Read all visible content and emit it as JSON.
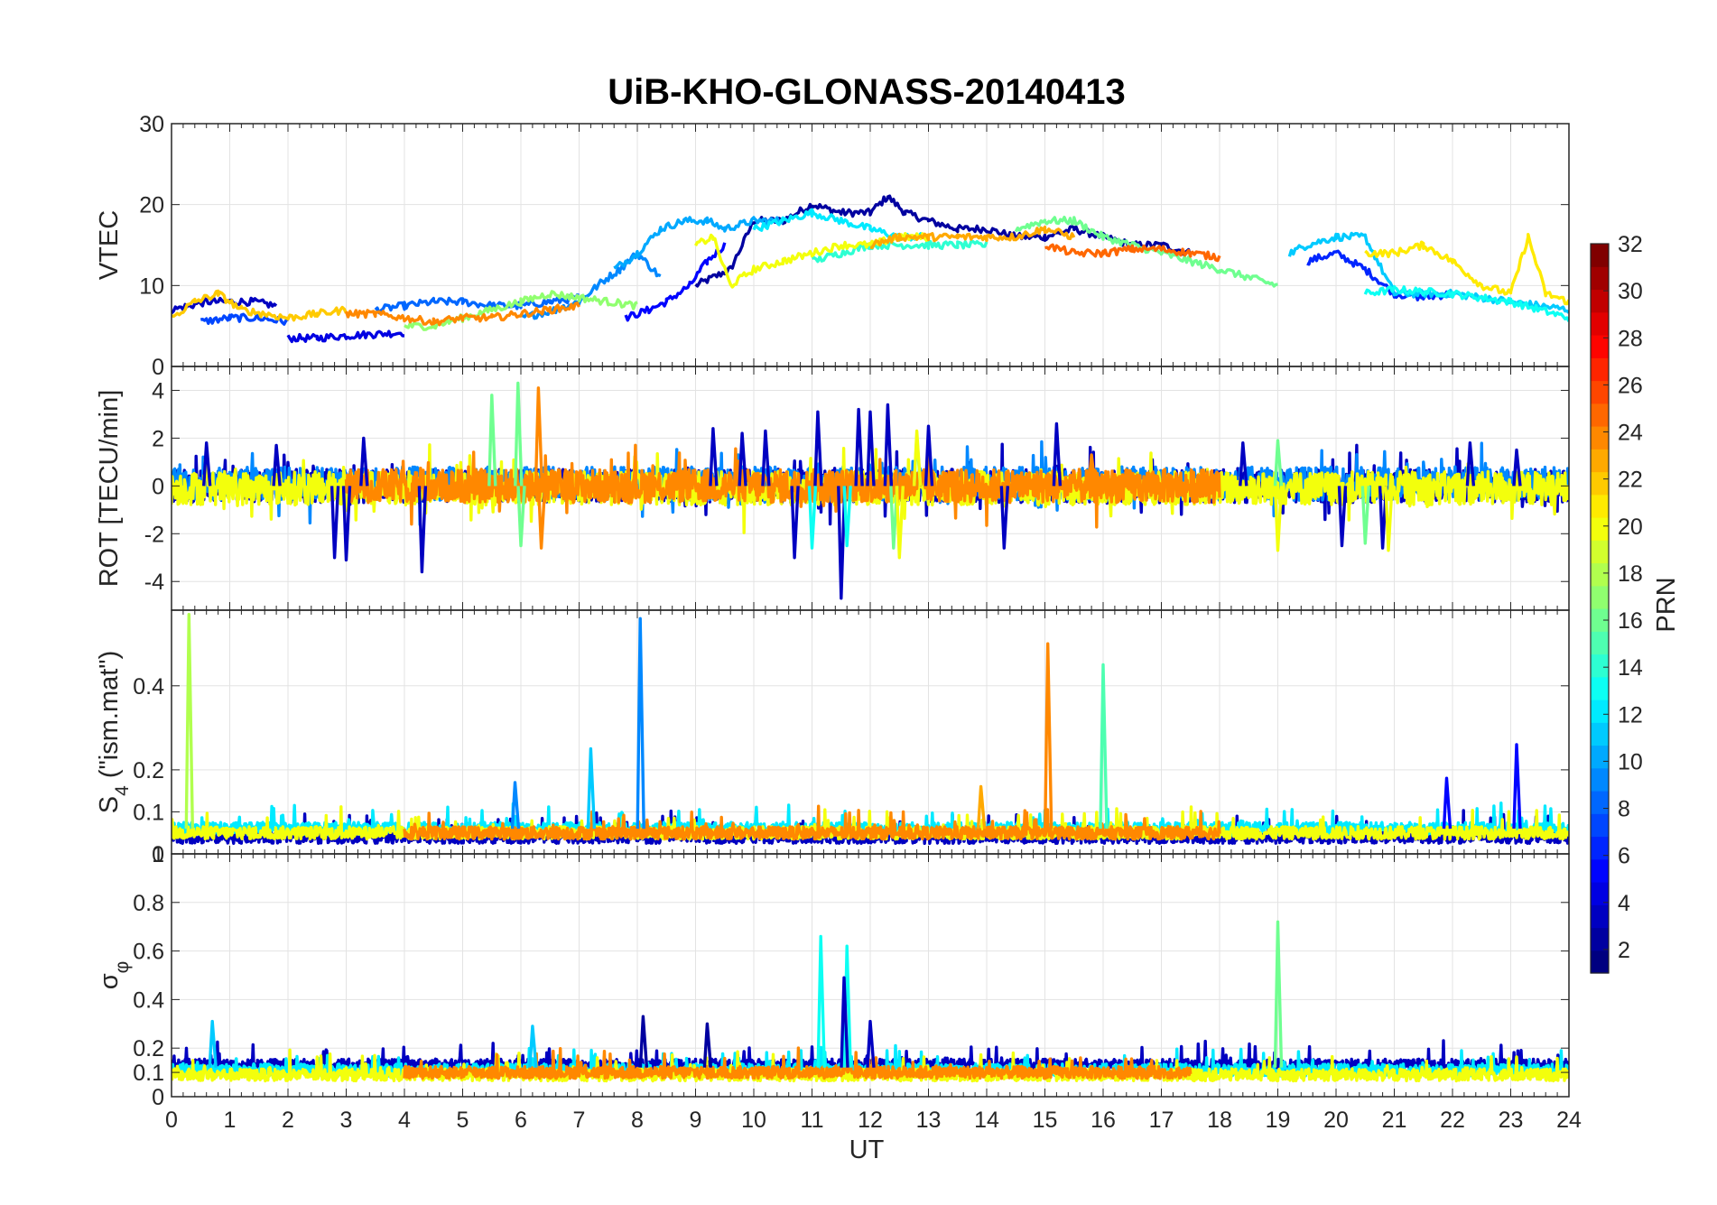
{
  "chart_data": {
    "type": "line",
    "title": "UiB-KHO-GLONASS-20140413",
    "xlabel": "UT",
    "xlim": [
      0,
      24
    ],
    "xticks": [
      "0",
      "1",
      "2",
      "3",
      "4",
      "5",
      "6",
      "7",
      "8",
      "9",
      "10",
      "11",
      "12",
      "13",
      "14",
      "15",
      "16",
      "17",
      "18",
      "19",
      "20",
      "21",
      "22",
      "23",
      "24"
    ],
    "grid": true,
    "colorbar": {
      "label": "PRN",
      "colormap": "jet",
      "range": [
        1,
        32
      ],
      "ticks": [
        "2",
        "4",
        "6",
        "8",
        "10",
        "12",
        "14",
        "16",
        "18",
        "20",
        "22",
        "24",
        "26",
        "28",
        "30",
        "32"
      ]
    },
    "panels": [
      {
        "id": "vtec",
        "ylabel": "VTEC",
        "ylim": [
          0,
          30
        ],
        "yticks": [
          "0",
          "10",
          "20",
          "30"
        ],
        "series": [
          {
            "prn": 2,
            "name": "PRN 2",
            "x": [
              9.0,
              9.6,
              10.0,
              10.5,
              11.0,
              11.5,
              12.0,
              12.3,
              12.6,
              13.0,
              13.5,
              14.0,
              14.5,
              15.0,
              15.5,
              16.0,
              16.5,
              17.0,
              17.5
            ],
            "y": [
              10,
              12,
              18,
              18,
              20,
              19,
              19,
              21,
              19,
              18,
              17,
              17,
              16,
              16,
              17,
              16,
              15,
              15,
              14
            ]
          },
          {
            "prn": 3,
            "name": "PRN 3",
            "x": [
              0.0,
              0.3,
              0.6,
              1.0,
              1.4,
              1.8
            ],
            "y": [
              7,
              7.5,
              8,
              8,
              8,
              7.5
            ]
          },
          {
            "prn": 4,
            "name": "PRN 4",
            "x": [
              2.0,
              2.5,
              3.0,
              3.5,
              4.0
            ],
            "y": [
              3.5,
              3.5,
              3.8,
              4,
              4.2
            ]
          },
          {
            "prn": 5,
            "name": "PRN 5",
            "x": [
              7.8,
              8.2,
              8.5,
              8.9,
              9.2,
              9.5
            ],
            "y": [
              6,
              7,
              8,
              10,
              13,
              15
            ]
          },
          {
            "prn": 6,
            "name": "PRN 6",
            "x": [
              19.5,
              20.0,
              20.5,
              21.0,
              21.5,
              22.0
            ],
            "y": [
              13,
              14,
              12,
              9,
              8.5,
              9
            ]
          },
          {
            "prn": 7,
            "name": "PRN 7",
            "x": [
              0.5,
              1.0,
              1.5,
              2.0
            ],
            "y": [
              5.5,
              6,
              6,
              5.5
            ]
          },
          {
            "prn": 8,
            "name": "PRN 8",
            "x": [
              3.5,
              4.0,
              4.5,
              5.0,
              5.5,
              6.0,
              6.5,
              7.0
            ],
            "y": [
              7,
              7.5,
              8,
              8,
              7.5,
              7.5,
              8,
              8.5
            ]
          },
          {
            "prn": 9,
            "name": "PRN 9",
            "x": [
              6.0,
              6.6,
              7.0,
              7.4,
              7.7,
              8.0,
              8.4
            ],
            "y": [
              6,
              7,
              8,
              10.5,
              12,
              14,
              11
            ]
          },
          {
            "prn": 10,
            "name": "PRN 10",
            "x": [
              7.6,
              8.0,
              8.4,
              8.8,
              9.2,
              9.5,
              10.0,
              10.5
            ],
            "y": [
              12,
              14,
              17,
              18,
              18,
              17,
              18,
              18
            ]
          },
          {
            "prn": 11,
            "name": "PRN 11",
            "x": [
              19.2,
              19.5,
              20.0,
              20.5,
              21.0,
              22.0,
              23.0,
              24.0
            ],
            "y": [
              14,
              15,
              16,
              16,
              9,
              9,
              8,
              7
            ]
          },
          {
            "prn": 12,
            "name": "PRN 12",
            "x": [
              10.0,
              10.5,
              11.0,
              11.5,
              12.0,
              12.5,
              13.0
            ],
            "y": [
              17,
              18,
              19,
              18,
              17,
              16,
              16
            ]
          },
          {
            "prn": 13,
            "name": "PRN 13",
            "x": [
              20.5,
              21.0,
              22.0,
              23.0,
              24.0
            ],
            "y": [
              9,
              9.5,
              9,
              8,
              6
            ]
          },
          {
            "prn": 14,
            "name": "PRN 14",
            "x": [
              11.0,
              11.5,
              12.0,
              12.5,
              13.0,
              13.5,
              14.0
            ],
            "y": [
              13,
              14,
              15,
              15,
              15,
              15,
              15
            ]
          },
          {
            "prn": 16,
            "name": "PRN 16",
            "x": [
              14.5,
              15.0,
              15.5,
              16.0,
              16.5,
              17.0,
              17.5,
              18.0,
              18.5,
              19.0
            ],
            "y": [
              17,
              18,
              18,
              16,
              15,
              14,
              13,
              12,
              11,
              10
            ]
          },
          {
            "prn": 17,
            "name": "PRN 17",
            "x": [
              4.0,
              4.5,
              5.0,
              5.5,
              6.0,
              6.5,
              7.0,
              7.5,
              8.0
            ],
            "y": [
              5,
              5,
              6,
              7,
              8,
              9,
              8.5,
              8,
              7.5
            ]
          },
          {
            "prn": 20,
            "name": "PRN 20",
            "x": [
              9.0,
              9.3,
              9.6,
              10.0,
              10.5,
              11.0,
              11.5,
              12.0,
              12.5,
              13.0
            ],
            "y": [
              15,
              16,
              10,
              12,
              13,
              14,
              15,
              15,
              16,
              16
            ]
          },
          {
            "prn": 21,
            "name": "PRN 21",
            "x": [
              20.5,
              21.0,
              21.5,
              22.0,
              22.5,
              23.0,
              23.3,
              23.6,
              24.0
            ],
            "y": [
              14,
              14,
              15,
              13,
              10,
              9,
              16,
              9,
              8
            ]
          },
          {
            "prn": 22,
            "name": "PRN 22",
            "x": [
              0.0,
              0.4,
              0.8,
              1.2,
              1.6,
              2.0,
              2.5,
              3.0
            ],
            "y": [
              6,
              8,
              9,
              7,
              6.5,
              6,
              6.5,
              7
            ]
          },
          {
            "prn": 23,
            "name": "PRN 23",
            "x": [
              12.0,
              12.5,
              13.0,
              13.5,
              14.0,
              14.5,
              15.0,
              15.5
            ],
            "y": [
              15,
              16,
              16,
              16,
              16,
              16,
              17,
              16
            ]
          },
          {
            "prn": 24,
            "name": "PRN 24",
            "x": [
              3.0,
              3.5,
              4.0,
              4.5,
              5.0,
              5.5,
              6.0,
              6.5,
              7.0
            ],
            "y": [
              6.5,
              6.5,
              6,
              5.5,
              6,
              6,
              6.5,
              7,
              7.5
            ]
          },
          {
            "prn": 25,
            "name": "PRN 25",
            "x": [
              15.0,
              15.5,
              16.0,
              16.5,
              17.0,
              17.5,
              18.0
            ],
            "y": [
              15,
              14,
              14,
              14.5,
              14.5,
              14,
              13.5
            ]
          }
        ]
      },
      {
        "id": "rot",
        "ylabel": "ROT [TECU/min]",
        "ylim": [
          -5.2,
          5
        ],
        "yticks": [
          "-4",
          "-2",
          "0",
          "2",
          "4"
        ],
        "series": [
          {
            "prn": 3,
            "name": "PRN 3",
            "x": [
              0.0,
              24.0
            ],
            "y": [
              0.0,
              0.0
            ]
          },
          {
            "prn": 9,
            "name": "PRN 9",
            "x": [
              0.0,
              24.0
            ],
            "y": [
              0.1,
              0.1
            ]
          },
          {
            "prn": 20,
            "name": "PRN 20",
            "x": [
              0.0,
              24.0
            ],
            "y": [
              -0.1,
              -0.1
            ]
          },
          {
            "prn": 24,
            "name": "PRN 24",
            "x": [
              3.0,
              18.0
            ],
            "y": [
              0.0,
              0.0
            ]
          }
        ],
        "spikes": [
          {
            "prn": 3,
            "x": [
              0.6,
              1.8,
              2.8,
              3.0,
              3.3,
              4.3,
              9.3,
              9.8,
              10.2,
              10.7,
              11.1,
              11.5,
              11.8,
              12.0,
              12.3,
              13.0,
              14.3,
              15.2,
              18.4,
              20.1,
              20.8,
              22.3,
              23.1
            ],
            "y": [
              1.8,
              1.7,
              -3.0,
              -3.1,
              2.0,
              -3.6,
              2.4,
              2.2,
              2.3,
              -3.0,
              3.1,
              -4.7,
              3.2,
              3.1,
              3.4,
              2.5,
              -2.6,
              2.6,
              1.8,
              -2.5,
              -2.6,
              1.8,
              1.5
            ]
          },
          {
            "prn": 13,
            "name": "PRN 13",
            "x": [
              11.0,
              11.6,
              12.8
            ],
            "y": [
              -2.6,
              -2.5,
              2.1
            ]
          },
          {
            "prn": 16,
            "x": [
              5.5,
              5.95,
              6.0,
              12.4,
              19.0,
              20.5
            ],
            "y": [
              3.8,
              4.3,
              -2.5,
              -2.6,
              1.9,
              -2.4
            ]
          },
          {
            "prn": 24,
            "x": [
              6.3,
              6.35,
              15.8
            ],
            "y": [
              4.1,
              -2.6,
              1.3
            ]
          },
          {
            "prn": 20,
            "x": [
              12.5,
              12.8,
              19.0,
              20.9
            ],
            "y": [
              -3.0,
              2.3,
              -2.7,
              -2.7
            ]
          }
        ]
      },
      {
        "id": "s4",
        "ylabel": "S4 (\"ism.mat\")",
        "ylabel_main": "S",
        "ylabel_sub": "4",
        "ylabel_rest": " (\"ism.mat\")",
        "ylim": [
          0,
          0.58
        ],
        "yticks": [
          "0",
          "0.1",
          "0.2",
          "0.4"
        ],
        "series": [
          {
            "prn": 3,
            "name": "PRN 3",
            "x": [
              0.0,
              24.0
            ],
            "y": [
              0.04,
              0.04
            ]
          },
          {
            "prn": 12,
            "name": "PRN 12",
            "x": [
              0.0,
              24.0
            ],
            "y": [
              0.06,
              0.06
            ]
          },
          {
            "prn": 20,
            "name": "PRN 20",
            "x": [
              0.0,
              24.0
            ],
            "y": [
              0.05,
              0.05
            ]
          },
          {
            "prn": 24,
            "name": "PRN 24",
            "x": [
              4.0,
              18.0
            ],
            "y": [
              0.05,
              0.05
            ]
          }
        ],
        "spikes": [
          {
            "prn": 18,
            "x": [
              0.3
            ],
            "y": [
              0.57
            ]
          },
          {
            "prn": 9,
            "x": [
              8.05
            ],
            "y": [
              0.56
            ]
          },
          {
            "prn": 24,
            "x": [
              15.05
            ],
            "y": [
              0.5
            ]
          },
          {
            "prn": 15,
            "x": [
              16.0
            ],
            "y": [
              0.45
            ]
          },
          {
            "prn": 11,
            "x": [
              7.2
            ],
            "y": [
              0.25
            ]
          },
          {
            "prn": 5,
            "x": [
              23.1,
              21.9
            ],
            "y": [
              0.26,
              0.18
            ]
          },
          {
            "prn": 23,
            "x": [
              13.9
            ],
            "y": [
              0.16
            ]
          },
          {
            "prn": 9,
            "x": [
              5.9
            ],
            "y": [
              0.17
            ]
          }
        ]
      },
      {
        "id": "sigma_phi",
        "ylabel": "σφ",
        "ylabel_main": "σ",
        "ylabel_sub": "φ",
        "ylim": [
          0,
          1
        ],
        "yticks": [
          "0",
          "0.1",
          "0.2",
          "0.4",
          "0.6",
          "0.8",
          "1"
        ],
        "series": [
          {
            "prn": 3,
            "name": "PRN 3",
            "x": [
              0.0,
              24.0
            ],
            "y": [
              0.13,
              0.13
            ]
          },
          {
            "prn": 12,
            "name": "PRN 12",
            "x": [
              0.0,
              24.0
            ],
            "y": [
              0.11,
              0.11
            ]
          },
          {
            "prn": 20,
            "name": "PRN 20",
            "x": [
              0.0,
              24.0
            ],
            "y": [
              0.09,
              0.09
            ]
          },
          {
            "prn": 24,
            "name": "PRN 24",
            "x": [
              4.0,
              17.5
            ],
            "y": [
              0.1,
              0.1
            ]
          }
        ],
        "spikes": [
          {
            "prn": 13,
            "x": [
              11.15,
              11.6
            ],
            "y": [
              0.66,
              0.62
            ]
          },
          {
            "prn": 16,
            "x": [
              19.0
            ],
            "y": [
              0.72
            ]
          },
          {
            "prn": 3,
            "x": [
              11.55,
              12.0
            ],
            "y": [
              0.49,
              0.31
            ]
          },
          {
            "prn": 11,
            "x": [
              0.7,
              6.2
            ],
            "y": [
              0.31,
              0.29
            ]
          },
          {
            "prn": 2,
            "x": [
              8.1,
              9.2
            ],
            "y": [
              0.33,
              0.3
            ]
          }
        ]
      }
    ]
  }
}
